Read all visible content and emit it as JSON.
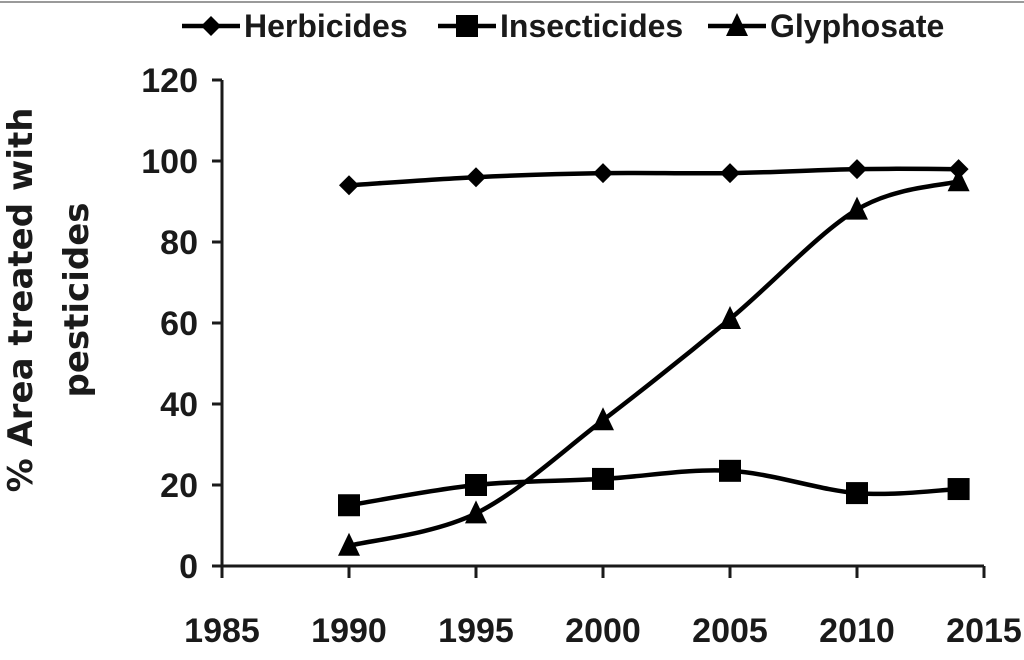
{
  "chart_data": {
    "type": "line",
    "title": "",
    "xlabel": "",
    "ylabel": [
      "% Area treated with",
      "pesticides"
    ],
    "xlim": [
      1985,
      2015
    ],
    "ylim": [
      0,
      120
    ],
    "x_ticks": [
      "1985",
      "1990",
      "1995",
      "2000",
      "2005",
      "2010",
      "2015"
    ],
    "y_ticks": [
      "0",
      "20",
      "40",
      "60",
      "80",
      "100",
      "120"
    ],
    "grid": false,
    "legend_position": "top",
    "line_color": "#000000",
    "series": [
      {
        "name": "Herbicides",
        "marker": "diamond",
        "x": [
          1990,
          1995,
          2000,
          2005,
          2010,
          2014
        ],
        "y": [
          94,
          96,
          97,
          97,
          98,
          98
        ]
      },
      {
        "name": "Insecticides",
        "marker": "square",
        "x": [
          1990,
          1995,
          2000,
          2005,
          2010,
          2014
        ],
        "y": [
          15,
          20,
          21.5,
          23.5,
          18,
          19
        ]
      },
      {
        "name": "Glyphosate",
        "marker": "triangle",
        "x": [
          1990,
          1995,
          2000,
          2005,
          2010,
          2014
        ],
        "y": [
          5,
          13,
          36,
          61,
          88,
          95
        ]
      }
    ]
  }
}
